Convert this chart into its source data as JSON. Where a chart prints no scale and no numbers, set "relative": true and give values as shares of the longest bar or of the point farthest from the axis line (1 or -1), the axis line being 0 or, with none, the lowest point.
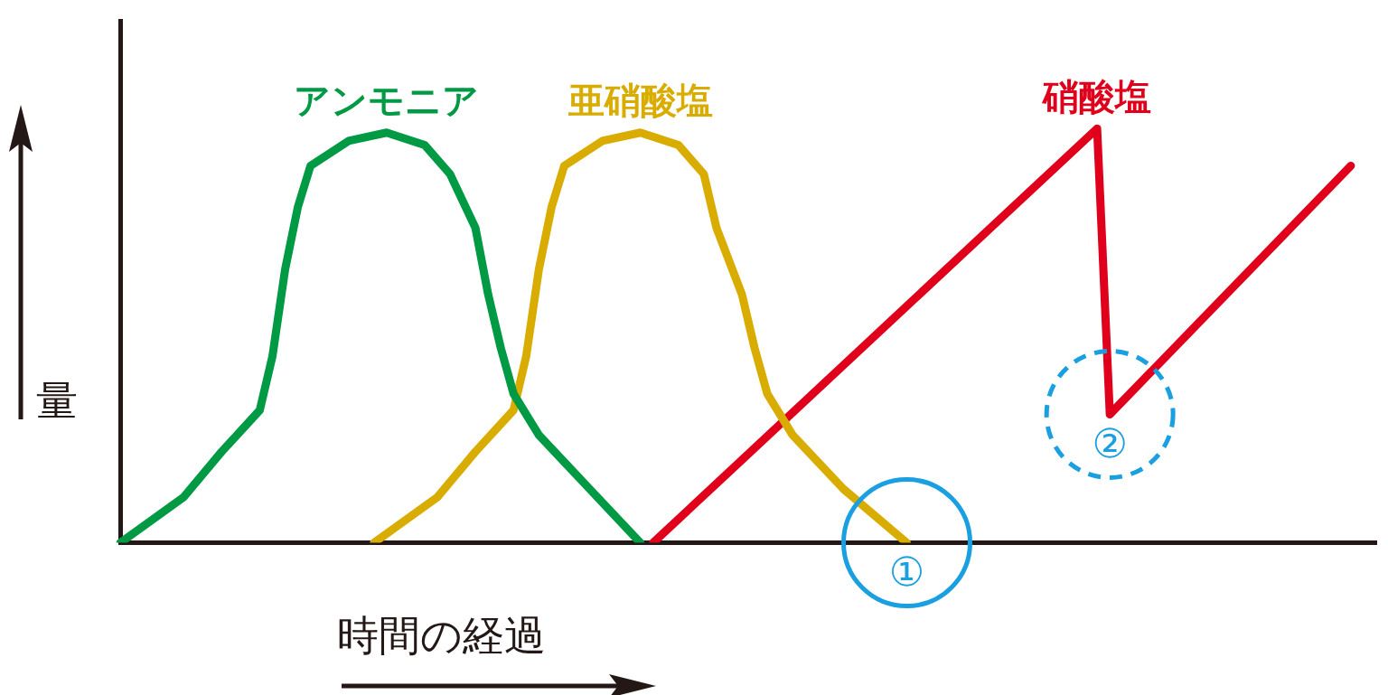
{
  "chart_data": {
    "type": "line",
    "relative": true,
    "xlabel": "時間の経過",
    "ylabel": "量",
    "legend": false,
    "grid": false,
    "marker": "none",
    "line_style": "solid",
    "categories": [
      null,
      null,
      null,
      null,
      null,
      null,
      null,
      null,
      null,
      null,
      null,
      null,
      null,
      null,
      null,
      null,
      null,
      null,
      null,
      null,
      null,
      null,
      null,
      null,
      null,
      null,
      null,
      null,
      null,
      null,
      null,
      null,
      null,
      null,
      null,
      null,
      null,
      null,
      null,
      null,
      null,
      null,
      null,
      null,
      null,
      null,
      null,
      null,
      null,
      null,
      null,
      null,
      null,
      null,
      null,
      null,
      null,
      null,
      null,
      null,
      null,
      null,
      null,
      null,
      null,
      null,
      null,
      null,
      null,
      null,
      null,
      null,
      null,
      null,
      null,
      null,
      null,
      null,
      null,
      null,
      null,
      null,
      null,
      null,
      null,
      null,
      null,
      null,
      null,
      null,
      null,
      null,
      null,
      null,
      null,
      null,
      null,
      null,
      null,
      null
    ],
    "series": [
      {
        "name": "アンモニア",
        "color": "#009944",
        "values": [
          0,
          null,
          null,
          null,
          null,
          0.11,
          null,
          null,
          0.22,
          null,
          null,
          0.32,
          0.45,
          0.66,
          0.81,
          0.91,
          null,
          null,
          0.97,
          null,
          null,
          0.99,
          null,
          null,
          0.96,
          null,
          0.89,
          null,
          0.76,
          0.6,
          0.47,
          0.36,
          null,
          0.26,
          null,
          null,
          null,
          0.13,
          null,
          null,
          null,
          0,
          null,
          null,
          null,
          null,
          null,
          null,
          null,
          null,
          null,
          null,
          null,
          null,
          null,
          null,
          null,
          null,
          null,
          null,
          null,
          null,
          null,
          null,
          null,
          null,
          null,
          null,
          null,
          null,
          null,
          null,
          null,
          null,
          null,
          null,
          null,
          null,
          null,
          null,
          null,
          null,
          null,
          null,
          null,
          null,
          null,
          null,
          null,
          null,
          null,
          null,
          null,
          null,
          null,
          null,
          null,
          null,
          null,
          null
        ]
      },
      {
        "name": "亜硝酸塩",
        "color": "#d9ac00",
        "values": [
          null,
          null,
          null,
          null,
          null,
          null,
          null,
          null,
          null,
          null,
          null,
          null,
          null,
          null,
          null,
          null,
          null,
          null,
          null,
          null,
          0,
          null,
          null,
          null,
          null,
          0.11,
          null,
          null,
          0.22,
          null,
          null,
          0.32,
          0.45,
          0.66,
          0.81,
          0.91,
          null,
          null,
          0.97,
          null,
          null,
          0.99,
          null,
          null,
          0.96,
          null,
          0.89,
          0.76,
          null,
          0.6,
          0.47,
          0.36,
          null,
          0.26,
          null,
          null,
          null,
          0.13,
          null,
          null,
          null,
          null,
          0,
          null,
          null,
          null,
          null,
          null,
          null,
          null,
          null,
          null,
          null,
          null,
          null,
          null,
          null,
          null,
          null,
          null,
          null,
          null,
          null,
          null,
          null,
          null,
          null,
          null,
          null,
          null,
          null,
          null,
          null,
          null,
          null,
          null,
          null,
          null,
          null,
          null
        ]
      },
      {
        "name": "硝酸塩",
        "color": "#e0001b",
        "values": [
          null,
          null,
          null,
          null,
          null,
          null,
          null,
          null,
          null,
          null,
          null,
          null,
          null,
          null,
          null,
          null,
          null,
          null,
          null,
          null,
          null,
          null,
          null,
          null,
          null,
          null,
          null,
          null,
          null,
          null,
          null,
          null,
          null,
          null,
          null,
          null,
          null,
          null,
          null,
          null,
          null,
          null,
          0,
          null,
          null,
          null,
          null,
          null,
          null,
          null,
          null,
          null,
          null,
          null,
          null,
          null,
          null,
          null,
          null,
          null,
          null,
          null,
          null,
          null,
          null,
          null,
          null,
          null,
          null,
          null,
          null,
          null,
          null,
          null,
          null,
          null,
          null,
          1,
          0.31,
          null,
          null,
          null,
          null,
          null,
          null,
          null,
          null,
          null,
          null,
          null,
          null,
          null,
          null,
          null,
          null,
          null,
          null,
          0.91,
          null,
          null
        ]
      }
    ],
    "annotations": [
      "①",
      "②"
    ]
  }
}
